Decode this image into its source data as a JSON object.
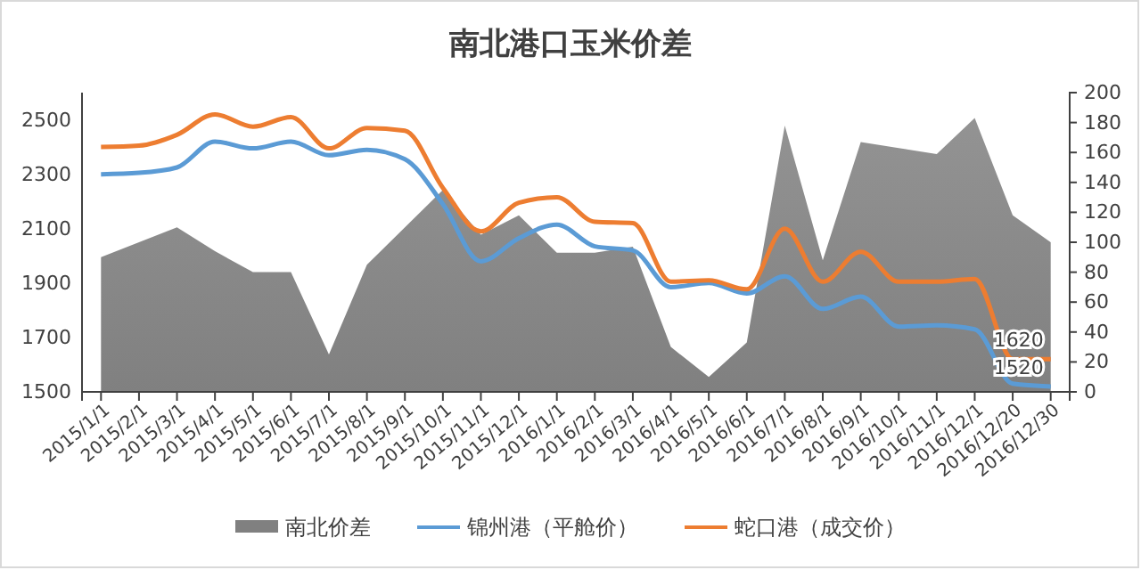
{
  "chart_data": {
    "type": "line",
    "title": "南北港口玉米价差",
    "categories": [
      "2015/1/1",
      "2015/2/1",
      "2015/3/1",
      "2015/4/1",
      "2015/5/1",
      "2015/6/1",
      "2015/7/1",
      "2015/8/1",
      "2015/9/1",
      "2015/10/1",
      "2015/11/1",
      "2015/12/1",
      "2016/1/1",
      "2016/2/1",
      "2016/3/1",
      "2016/4/1",
      "2016/5/1",
      "2016/6/1",
      "2016/7/1",
      "2016/8/1",
      "2016/9/1",
      "2016/10/1",
      "2016/11/1",
      "2016/12/1",
      "2016/12/20",
      "2016/12/30"
    ],
    "series": [
      {
        "name": "南北价差",
        "type": "area",
        "axis": "y2",
        "color": "#808080",
        "values": [
          90,
          100,
          110,
          94,
          80,
          80,
          25,
          85,
          110,
          135,
          105,
          118,
          93,
          93,
          97,
          30,
          10,
          33,
          178,
          88,
          167,
          163,
          159,
          183,
          118,
          100
        ]
      },
      {
        "name": "锦州港（平舱价）",
        "color": "#5b9bd5",
        "values": [
          2300,
          2305,
          2325,
          2420,
          2395,
          2420,
          2370,
          2390,
          2355,
          2190,
          1980,
          2065,
          2115,
          2035,
          2020,
          1885,
          1900,
          1862,
          1925,
          1805,
          1850,
          1740,
          1745,
          1730,
          1530,
          1520
        ],
        "value_labels": [
          null,
          null,
          null,
          null,
          null,
          null,
          null,
          null,
          null,
          null,
          null,
          null,
          null,
          null,
          null,
          null,
          null,
          null,
          null,
          null,
          null,
          null,
          null,
          null,
          null,
          "1520"
        ]
      },
      {
        "name": "蛇口港（成交价）",
        "color": "#ed7d31",
        "values": [
          2400,
          2405,
          2445,
          2520,
          2475,
          2510,
          2395,
          2470,
          2460,
          2250,
          2090,
          2195,
          2215,
          2125,
          2120,
          1905,
          1910,
          1877,
          2100,
          1905,
          2015,
          1905,
          1905,
          1915,
          1620,
          1620
        ],
        "value_labels": [
          null,
          null,
          null,
          null,
          null,
          null,
          null,
          null,
          null,
          null,
          null,
          null,
          null,
          null,
          null,
          null,
          null,
          null,
          null,
          null,
          null,
          null,
          null,
          null,
          null,
          "1620"
        ]
      }
    ],
    "ylim": [
      1500,
      2600
    ],
    "yticks": [
      1500,
      1700,
      1900,
      2100,
      2300,
      2500
    ],
    "y2lim": [
      0,
      200
    ],
    "y2ticks": [
      0,
      20,
      40,
      60,
      80,
      100,
      120,
      140,
      160,
      180,
      200
    ],
    "legend": "bottom",
    "grid": false,
    "marker": "none",
    "line_style": "solid"
  }
}
